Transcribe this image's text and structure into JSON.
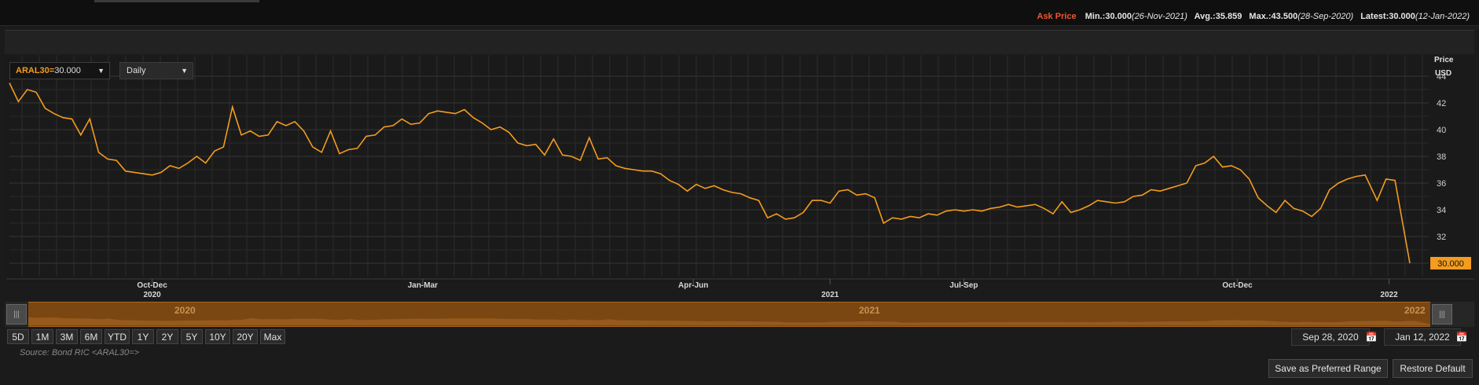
{
  "stats": {
    "label": "Ask Price",
    "min": "Min.:30.000",
    "min_date": "(26-Nov-2021)",
    "avg": "Avg.:35.859",
    "max": "Max.:43.500",
    "max_date": "(28-Sep-2020)",
    "latest": "Latest:30.000",
    "latest_date": "(12-Jan-2022)"
  },
  "ric": {
    "code": "ARAL30=",
    "value": "30.000"
  },
  "frequency": "Daily",
  "axis": {
    "title": "Price",
    "unit": "USD"
  },
  "last_value": "30.000",
  "navigator": {
    "labels": [
      "2020",
      "2021",
      "2022"
    ]
  },
  "ranges": [
    "5D",
    "1M",
    "3M",
    "6M",
    "YTD",
    "1Y",
    "2Y",
    "5Y",
    "10Y",
    "20Y",
    "Max"
  ],
  "date_from": "Sep 28, 2020",
  "date_to": "Jan 12, 2022",
  "source": "Source: Bond RIC <ARAL30=>",
  "buttons": {
    "save": "Save as Preferred Range",
    "restore": "Restore Default"
  },
  "colors": {
    "line": "#f39c1f",
    "accent": "#f0562e"
  },
  "chart_data": {
    "type": "line",
    "title": "",
    "ylabel": "Price USD",
    "ylim": [
      29,
      45
    ],
    "yticks": [
      32,
      34,
      36,
      38,
      40,
      42,
      44
    ],
    "xticks": [
      {
        "label": "Oct-Dec",
        "sub": "2020",
        "x": "2020-11-15"
      },
      {
        "label": "Jan-Mar",
        "sub": "",
        "x": "2021-02-14"
      },
      {
        "label": "Apr-Jun",
        "sub": "",
        "x": "2021-05-16"
      },
      {
        "label": "",
        "sub": "2021",
        "x": "2021-07-01"
      },
      {
        "label": "Jul-Sep",
        "sub": "",
        "x": "2021-08-15"
      },
      {
        "label": "Oct-Dec",
        "sub": "",
        "x": "2021-11-15"
      },
      {
        "label": "",
        "sub": "2022",
        "x": "2022-01-05"
      }
    ],
    "grid": true,
    "series": [
      {
        "name": "Ask Price",
        "points": [
          [
            "2020-09-28",
            43.5
          ],
          [
            "2020-10-01",
            42.1
          ],
          [
            "2020-10-04",
            43.0
          ],
          [
            "2020-10-07",
            42.8
          ],
          [
            "2020-10-10",
            41.6
          ],
          [
            "2020-10-13",
            41.2
          ],
          [
            "2020-10-16",
            40.9
          ],
          [
            "2020-10-19",
            40.8
          ],
          [
            "2020-10-22",
            39.6
          ],
          [
            "2020-10-25",
            40.8
          ],
          [
            "2020-10-28",
            38.3
          ],
          [
            "2020-10-31",
            37.8
          ],
          [
            "2020-11-03",
            37.7
          ],
          [
            "2020-11-06",
            36.9
          ],
          [
            "2020-11-09",
            36.8
          ],
          [
            "2020-11-12",
            36.7
          ],
          [
            "2020-11-15",
            36.6
          ],
          [
            "2020-11-18",
            36.8
          ],
          [
            "2020-11-21",
            37.3
          ],
          [
            "2020-11-24",
            37.1
          ],
          [
            "2020-11-27",
            37.5
          ],
          [
            "2020-11-30",
            38.0
          ],
          [
            "2020-12-03",
            37.5
          ],
          [
            "2020-12-06",
            38.4
          ],
          [
            "2020-12-09",
            38.7
          ],
          [
            "2020-12-12",
            41.7
          ],
          [
            "2020-12-15",
            39.6
          ],
          [
            "2020-12-18",
            39.9
          ],
          [
            "2020-12-21",
            39.5
          ],
          [
            "2020-12-24",
            39.6
          ],
          [
            "2020-12-27",
            40.6
          ],
          [
            "2020-12-30",
            40.3
          ],
          [
            "2021-01-02",
            40.6
          ],
          [
            "2021-01-05",
            39.9
          ],
          [
            "2021-01-08",
            38.7
          ],
          [
            "2021-01-11",
            38.3
          ],
          [
            "2021-01-14",
            39.9
          ],
          [
            "2021-01-17",
            38.2
          ],
          [
            "2021-01-20",
            38.5
          ],
          [
            "2021-01-23",
            38.6
          ],
          [
            "2021-01-26",
            39.5
          ],
          [
            "2021-01-29",
            39.6
          ],
          [
            "2021-02-01",
            40.2
          ],
          [
            "2021-02-04",
            40.3
          ],
          [
            "2021-02-07",
            40.8
          ],
          [
            "2021-02-10",
            40.4
          ],
          [
            "2021-02-13",
            40.5
          ],
          [
            "2021-02-16",
            41.2
          ],
          [
            "2021-02-19",
            41.4
          ],
          [
            "2021-02-22",
            41.3
          ],
          [
            "2021-02-25",
            41.2
          ],
          [
            "2021-02-28",
            41.5
          ],
          [
            "2021-03-03",
            40.9
          ],
          [
            "2021-03-06",
            40.5
          ],
          [
            "2021-03-09",
            40.0
          ],
          [
            "2021-03-12",
            40.2
          ],
          [
            "2021-03-15",
            39.8
          ],
          [
            "2021-03-18",
            39.0
          ],
          [
            "2021-03-21",
            38.8
          ],
          [
            "2021-03-24",
            38.9
          ],
          [
            "2021-03-27",
            38.1
          ],
          [
            "2021-03-30",
            39.3
          ],
          [
            "2021-04-02",
            38.1
          ],
          [
            "2021-04-05",
            38.0
          ],
          [
            "2021-04-08",
            37.7
          ],
          [
            "2021-04-11",
            39.4
          ],
          [
            "2021-04-14",
            37.8
          ],
          [
            "2021-04-17",
            37.9
          ],
          [
            "2021-04-20",
            37.3
          ],
          [
            "2021-04-23",
            37.1
          ],
          [
            "2021-04-26",
            37.0
          ],
          [
            "2021-04-29",
            36.9
          ],
          [
            "2021-05-02",
            36.9
          ],
          [
            "2021-05-05",
            36.7
          ],
          [
            "2021-05-08",
            36.2
          ],
          [
            "2021-05-11",
            35.9
          ],
          [
            "2021-05-14",
            35.4
          ],
          [
            "2021-05-17",
            35.9
          ],
          [
            "2021-05-20",
            35.6
          ],
          [
            "2021-05-23",
            35.8
          ],
          [
            "2021-05-26",
            35.5
          ],
          [
            "2021-05-29",
            35.3
          ],
          [
            "2021-06-01",
            35.2
          ],
          [
            "2021-06-04",
            34.9
          ],
          [
            "2021-06-07",
            34.7
          ],
          [
            "2021-06-10",
            33.4
          ],
          [
            "2021-06-13",
            33.7
          ],
          [
            "2021-06-16",
            33.3
          ],
          [
            "2021-06-19",
            33.4
          ],
          [
            "2021-06-22",
            33.8
          ],
          [
            "2021-06-25",
            34.7
          ],
          [
            "2021-06-28",
            34.7
          ],
          [
            "2021-07-01",
            34.5
          ],
          [
            "2021-07-04",
            35.4
          ],
          [
            "2021-07-07",
            35.5
          ],
          [
            "2021-07-10",
            35.1
          ],
          [
            "2021-07-13",
            35.2
          ],
          [
            "2021-07-16",
            34.9
          ],
          [
            "2021-07-19",
            33.0
          ],
          [
            "2021-07-22",
            33.4
          ],
          [
            "2021-07-25",
            33.3
          ],
          [
            "2021-07-28",
            33.5
          ],
          [
            "2021-07-31",
            33.4
          ],
          [
            "2021-08-03",
            33.7
          ],
          [
            "2021-08-06",
            33.6
          ],
          [
            "2021-08-09",
            33.9
          ],
          [
            "2021-08-12",
            34.0
          ],
          [
            "2021-08-15",
            33.9
          ],
          [
            "2021-08-18",
            34.0
          ],
          [
            "2021-08-21",
            33.9
          ],
          [
            "2021-08-24",
            34.1
          ],
          [
            "2021-08-27",
            34.2
          ],
          [
            "2021-08-30",
            34.4
          ],
          [
            "2021-09-02",
            34.2
          ],
          [
            "2021-09-05",
            34.3
          ],
          [
            "2021-09-08",
            34.4
          ],
          [
            "2021-09-11",
            34.1
          ],
          [
            "2021-09-14",
            33.7
          ],
          [
            "2021-09-17",
            34.6
          ],
          [
            "2021-09-20",
            33.8
          ],
          [
            "2021-09-23",
            34.0
          ],
          [
            "2021-09-26",
            34.3
          ],
          [
            "2021-09-29",
            34.7
          ],
          [
            "2021-10-02",
            34.6
          ],
          [
            "2021-10-05",
            34.5
          ],
          [
            "2021-10-08",
            34.6
          ],
          [
            "2021-10-11",
            35.0
          ],
          [
            "2021-10-14",
            35.1
          ],
          [
            "2021-10-17",
            35.5
          ],
          [
            "2021-10-20",
            35.4
          ],
          [
            "2021-10-23",
            35.6
          ],
          [
            "2021-10-26",
            35.8
          ],
          [
            "2021-10-29",
            36.0
          ],
          [
            "2021-11-01",
            37.3
          ],
          [
            "2021-11-04",
            37.5
          ],
          [
            "2021-11-07",
            38.0
          ],
          [
            "2021-11-10",
            37.2
          ],
          [
            "2021-11-13",
            37.3
          ],
          [
            "2021-11-16",
            37.0
          ],
          [
            "2021-11-19",
            36.3
          ],
          [
            "2021-11-22",
            34.9
          ],
          [
            "2021-11-25",
            34.3
          ],
          [
            "2021-11-28",
            33.8
          ],
          [
            "2021-12-01",
            34.7
          ],
          [
            "2021-12-04",
            34.1
          ],
          [
            "2021-12-07",
            33.9
          ],
          [
            "2021-12-10",
            33.5
          ],
          [
            "2021-12-13",
            34.1
          ],
          [
            "2021-12-16",
            35.5
          ],
          [
            "2021-12-19",
            36.0
          ],
          [
            "2021-12-22",
            36.3
          ],
          [
            "2021-12-25",
            36.5
          ],
          [
            "2021-12-28",
            36.6
          ],
          [
            "2022-01-01",
            34.7
          ],
          [
            "2022-01-04",
            36.3
          ],
          [
            "2022-01-07",
            36.2
          ],
          [
            "2022-01-12",
            30.0
          ]
        ]
      }
    ]
  }
}
